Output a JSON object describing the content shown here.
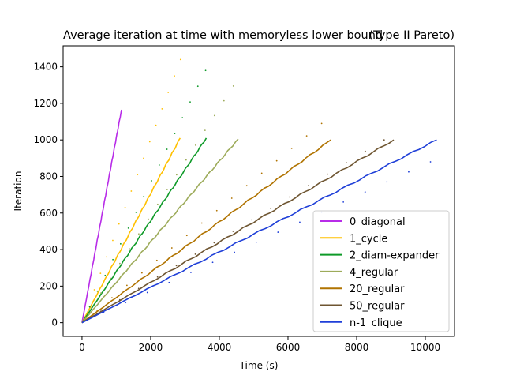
{
  "chart_data": {
    "type": "line",
    "title": "Average iteration at time with memoryless lower bound",
    "title_right": "(Type II Pareto)",
    "xlabel": "Time (s)",
    "ylabel": "Iteration",
    "xlim": [
      -550,
      10850
    ],
    "ylim": [
      -75,
      1515
    ],
    "xticks": [
      0,
      2000,
      4000,
      6000,
      8000,
      10000
    ],
    "yticks": [
      0,
      200,
      400,
      600,
      800,
      1000,
      1200,
      1400
    ],
    "grid": false,
    "legend_position": "lower right",
    "series": [
      {
        "name": "0_diagonal",
        "color": "#b82ce8",
        "line_end": [
          1150,
          1165
        ],
        "bound_end": [
          0,
          0
        ]
      },
      {
        "name": "1_cycle",
        "color": "#ffc000",
        "line_end": [
          2860,
          1010
        ],
        "bound_end": [
          2870,
          1440
        ]
      },
      {
        "name": "2_diam-expander",
        "color": "#0e9a28",
        "line_end": [
          3620,
          1010
        ],
        "bound_end": [
          3600,
          1380
        ]
      },
      {
        "name": "4_regular",
        "color": "#9dab5a",
        "line_end": [
          4550,
          1005
        ],
        "bound_end": [
          4410,
          1295
        ]
      },
      {
        "name": "20_regular",
        "color": "#b07300",
        "line_end": [
          7250,
          1000
        ],
        "bound_end": [
          6980,
          1090
        ]
      },
      {
        "name": "50_regular",
        "color": "#6e5531",
        "line_end": [
          9080,
          1000
        ],
        "bound_end": [
          8800,
          1000
        ]
      },
      {
        "name": "n-1_clique",
        "color": "#1f3fd8",
        "line_end": [
          10330,
          1000
        ],
        "bound_end": [
          10150,
          880
        ]
      }
    ]
  }
}
